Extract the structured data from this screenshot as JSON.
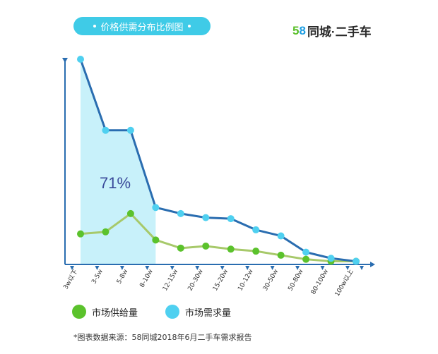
{
  "title": "价格供需分布比例图",
  "brand": {
    "num5": "5",
    "num8": "8",
    "text": "同城·二手车"
  },
  "colors": {
    "accent": "#3fcbe7",
    "demand_line": "#2a6db0",
    "demand_dot": "#4fd0f0",
    "supply_line": "#a7c96a",
    "supply_dot": "#5bc22c",
    "highlight": "#c8f1fa"
  },
  "chart_data": {
    "type": "line",
    "categories": [
      "3w以下",
      "3-5w",
      "5-8w",
      "8-10w",
      "12-15w",
      "20-30w",
      "15-20w",
      "10-12w",
      "30-50w",
      "50-80w",
      "80-100w",
      "100w以上"
    ],
    "series": [
      {
        "name": "市场需求量",
        "values": [
          100,
          65,
          65,
          27,
          24,
          22,
          21.5,
          16,
          13,
          5,
          2,
          0.5
        ]
      },
      {
        "name": "市场供给量",
        "values": [
          14,
          15,
          24,
          11,
          7,
          8,
          6.5,
          5.5,
          3.5,
          1.5,
          0.5,
          0.5
        ]
      }
    ],
    "ylim": [
      0,
      100
    ],
    "highlight_range": [
      "3w以下",
      "8-10w"
    ],
    "annotation": "71%",
    "xlabel": "",
    "ylabel": ""
  },
  "legend": [
    {
      "name": "市场供给量",
      "color": "#5bc22c"
    },
    {
      "name": "市场需求量",
      "color": "#4fd0f0"
    }
  ],
  "source": "*图表数据来源：58同城2018年6月二手车需求报告"
}
